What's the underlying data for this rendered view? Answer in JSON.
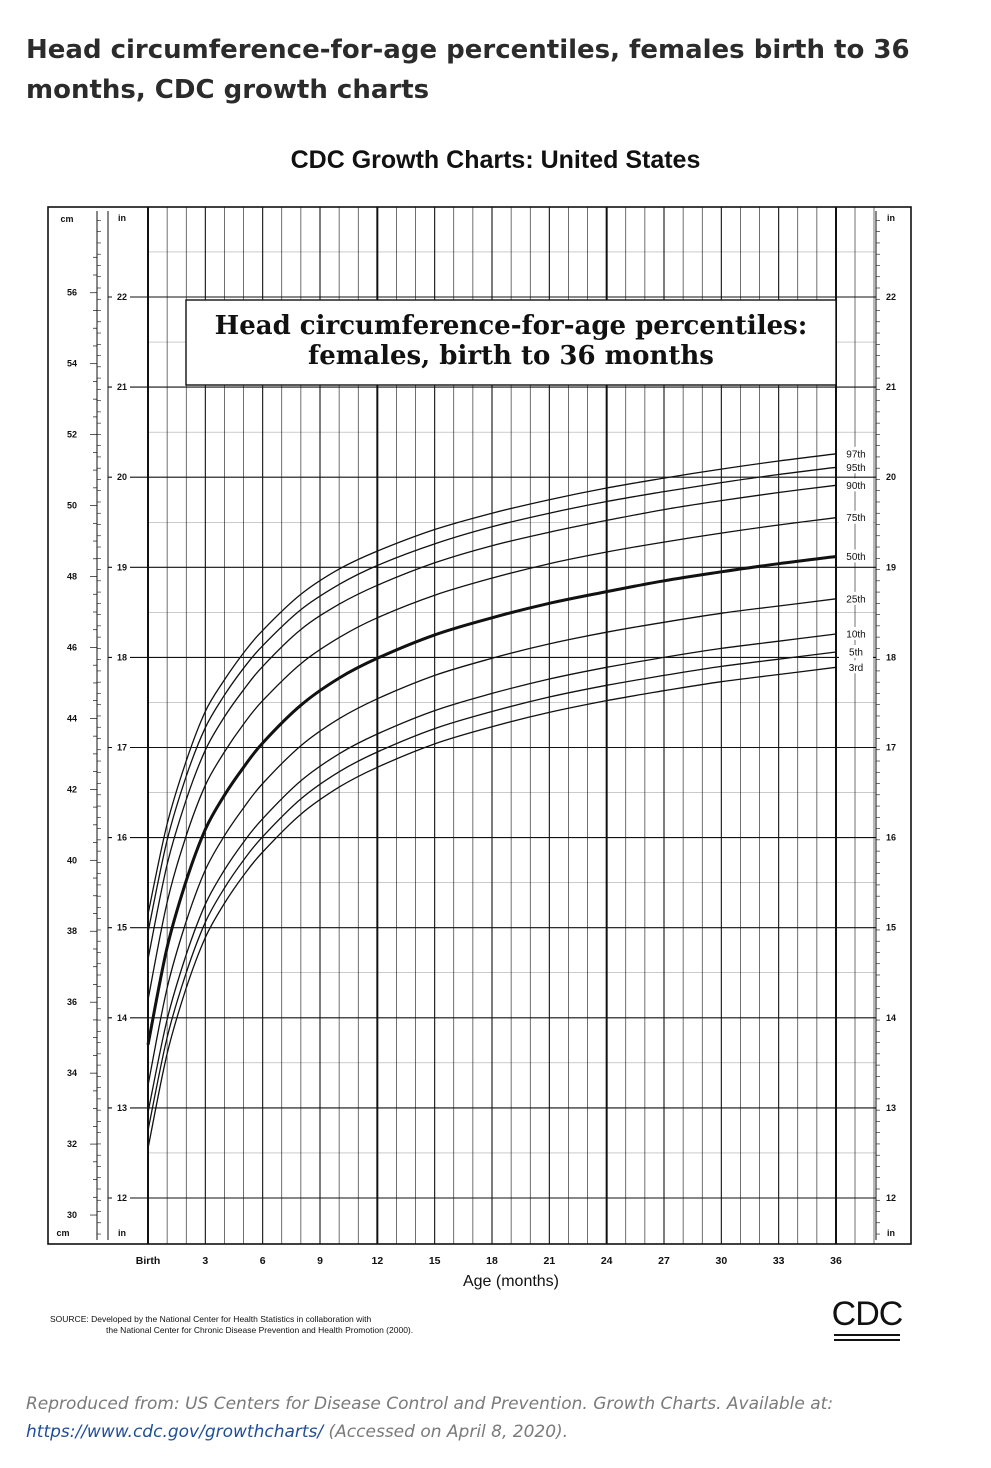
{
  "page": {
    "title": "Head circumference-for-age percentiles, females birth to 36 months, CDC growth charts",
    "chart_heading": "CDC Growth Charts: United States",
    "source_line1": "SOURCE: Developed by the National Center for Health Statistics in collaboration with",
    "source_line2": "the National Center for Chronic Disease Prevention and Health Promotion (2000).",
    "logo_text": "CDC",
    "footer_text": "Reproduced from: US Centers for Disease Control and Prevention. Growth Charts. Available at:",
    "footer_link": "https://www.cdc.gov/growthcharts/",
    "footer_suffix": " (Accessed on April 8, 2020)."
  },
  "colors": {
    "ink": "#111111",
    "background": "#ffffff",
    "footer_text": "#7a7a7a",
    "link": "#1f4e99"
  },
  "chart_data": {
    "type": "line",
    "title": "Head circumference-for-age percentiles:",
    "subtitle": "females, birth to 36 months",
    "xlabel": "Age (months)",
    "x_ticks": [
      "Birth",
      "3",
      "6",
      "9",
      "12",
      "15",
      "18",
      "21",
      "24",
      "27",
      "30",
      "33",
      "36"
    ],
    "xlim": [
      0,
      36
    ],
    "unit_left": "cm",
    "unit_right": "in",
    "left_cm_ticks": [
      "56",
      "54",
      "52",
      "50",
      "48",
      "46",
      "44",
      "42",
      "40",
      "38",
      "36",
      "34",
      "32",
      "30"
    ],
    "in_ticks": [
      "22",
      "21",
      "20",
      "19",
      "18",
      "17",
      "16",
      "15",
      "14",
      "13",
      "12"
    ],
    "ylim_in": [
      11.6,
      22.9
    ],
    "grid": true,
    "x": [
      0,
      1,
      2,
      3,
      4,
      5,
      6,
      8,
      10,
      12,
      15,
      18,
      21,
      24,
      27,
      30,
      33,
      36
    ],
    "series": [
      {
        "name": "97th",
        "values": [
          15.15,
          16.15,
          16.85,
          17.4,
          17.75,
          18.05,
          18.3,
          18.7,
          18.98,
          19.18,
          19.42,
          19.6,
          19.75,
          19.88,
          19.99,
          20.09,
          20.18,
          20.26
        ]
      },
      {
        "name": "95th",
        "values": [
          14.95,
          15.97,
          16.68,
          17.22,
          17.58,
          17.88,
          18.13,
          18.53,
          18.81,
          19.02,
          19.26,
          19.45,
          19.6,
          19.73,
          19.84,
          19.94,
          20.03,
          20.11
        ]
      },
      {
        "name": "90th",
        "values": [
          14.65,
          15.7,
          16.42,
          16.97,
          17.34,
          17.64,
          17.9,
          18.31,
          18.59,
          18.8,
          19.05,
          19.24,
          19.39,
          19.52,
          19.64,
          19.74,
          19.83,
          19.91
        ]
      },
      {
        "name": "75th",
        "values": [
          14.2,
          15.28,
          16.02,
          16.58,
          16.95,
          17.26,
          17.52,
          17.93,
          18.22,
          18.44,
          18.69,
          18.88,
          19.04,
          19.17,
          19.28,
          19.38,
          19.47,
          19.55
        ]
      },
      {
        "name": "50th",
        "values": [
          13.7,
          14.78,
          15.52,
          16.09,
          16.47,
          16.78,
          17.05,
          17.47,
          17.77,
          17.99,
          18.25,
          18.44,
          18.6,
          18.73,
          18.85,
          18.95,
          19.04,
          19.12
        ]
      },
      {
        "name": "25th",
        "values": [
          13.25,
          14.33,
          15.07,
          15.64,
          16.02,
          16.33,
          16.6,
          17.02,
          17.32,
          17.54,
          17.8,
          17.99,
          18.15,
          18.28,
          18.39,
          18.49,
          18.57,
          18.65
        ]
      },
      {
        "name": "10th",
        "values": [
          12.95,
          13.98,
          14.7,
          15.26,
          15.64,
          15.95,
          16.21,
          16.63,
          16.93,
          17.15,
          17.41,
          17.6,
          17.76,
          17.89,
          18.0,
          18.1,
          18.18,
          18.26
        ]
      },
      {
        "name": "5th",
        "values": [
          12.75,
          13.78,
          14.5,
          15.06,
          15.44,
          15.75,
          16.01,
          16.43,
          16.73,
          16.95,
          17.21,
          17.4,
          17.56,
          17.69,
          17.8,
          17.9,
          17.98,
          18.06
        ]
      },
      {
        "name": "3rd",
        "values": [
          12.55,
          13.6,
          14.33,
          14.89,
          15.27,
          15.58,
          15.84,
          16.26,
          16.56,
          16.78,
          17.04,
          17.23,
          17.39,
          17.52,
          17.63,
          17.73,
          17.81,
          17.89
        ]
      }
    ]
  }
}
